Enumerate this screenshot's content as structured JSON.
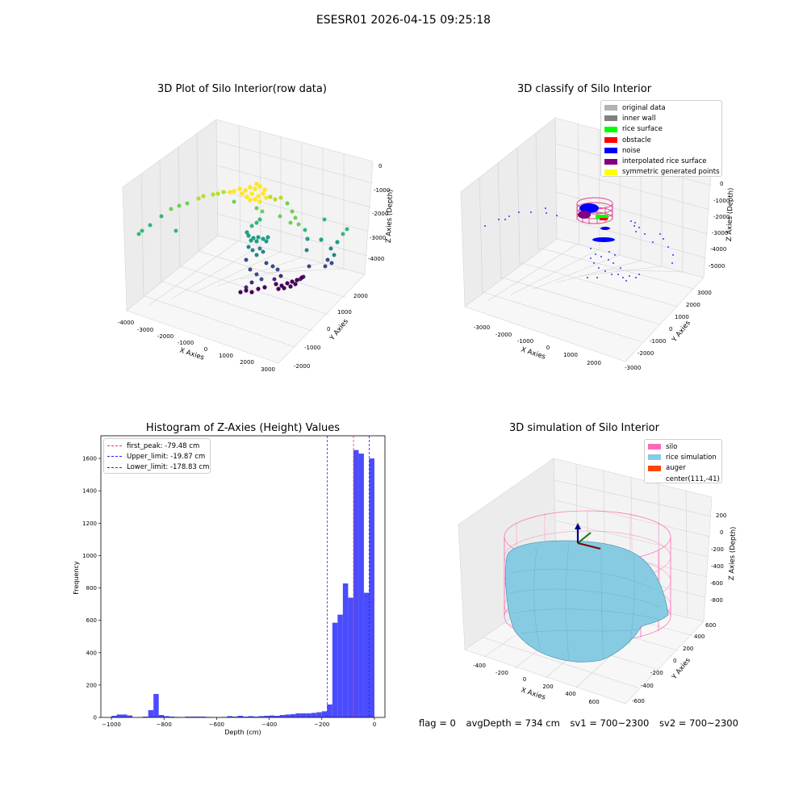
{
  "figure_title": "ESESR01 2026-04-15 09:25:18",
  "status": {
    "flag": "flag = 0",
    "avg_depth": "avgDepth = 734 cm",
    "sv1": "sv1 = 700~2300",
    "sv2": "sv2 = 700~2300"
  },
  "colors": {
    "histogram_bar": "#4b4bff",
    "first_peak_line": "#ff3333",
    "limit_lines": "#2222ff",
    "silo_wire": "#ff69b4",
    "rice_surface": "#87cbe3",
    "auger": "#ff4500"
  },
  "chart_data": [
    {
      "type": "scatter",
      "title": "3D Plot of Silo Interior(row data)",
      "xlabel": "X Axies",
      "ylabel": "Y Axies",
      "zlabel": "Z Axies (Depth)",
      "x_ticks": [
        "-4000",
        "-3000",
        "-2000",
        "-1000",
        "0",
        "1000",
        "2000",
        "3000"
      ],
      "y_ticks": [
        "-2000",
        "-1000",
        "0",
        "1000",
        "2000"
      ],
      "z_ticks": [
        "0",
        "-1000",
        "-2000",
        "-3000",
        "-4000"
      ],
      "colormap": "viridis"
    },
    {
      "type": "scatter",
      "title": "3D classify of Silo Interior",
      "xlabel": "X Axies",
      "ylabel": "Y Axies",
      "zlabel": "Z Axies (Depth)",
      "x_ticks": [
        "-3000",
        "-2000",
        "-1000",
        "0",
        "1000",
        "2000"
      ],
      "y_ticks": [
        "-3000",
        "-2000",
        "-1000",
        "0",
        "1000",
        "2000",
        "3000"
      ],
      "z_ticks": [
        "0",
        "-1000",
        "-2000",
        "-3000",
        "-4000",
        "-5000"
      ],
      "legend": [
        {
          "label": "original data",
          "color": "#b3b3b3"
        },
        {
          "label": "inner wall",
          "color": "#808080"
        },
        {
          "label": "rice surface",
          "color": "#00ff00"
        },
        {
          "label": "obstacle",
          "color": "#ff0000"
        },
        {
          "label": "noise",
          "color": "#0000ff"
        },
        {
          "label": "interpolated rice surface",
          "color": "#800080"
        },
        {
          "label": "symmetric generated points",
          "color": "#ffff00"
        }
      ]
    },
    {
      "type": "bar",
      "title": "Histogram of Z-Axies (Height) Values",
      "xlabel": "Depth (cm)",
      "ylabel": "Frequency",
      "xlim": [
        -1040,
        40
      ],
      "ylim": [
        0,
        1740
      ],
      "x_ticks": [
        -1000,
        -800,
        -600,
        -400,
        -200,
        0
      ],
      "y_ticks": [
        0,
        200,
        400,
        600,
        800,
        1000,
        1200,
        1400,
        1600
      ],
      "bin_width": 20,
      "bins": [
        {
          "x": -1000,
          "y": 10
        },
        {
          "x": -980,
          "y": 18
        },
        {
          "x": -960,
          "y": 18
        },
        {
          "x": -940,
          "y": 12
        },
        {
          "x": -900,
          "y": 2
        },
        {
          "x": -880,
          "y": 5
        },
        {
          "x": -860,
          "y": 45
        },
        {
          "x": -840,
          "y": 145
        },
        {
          "x": -820,
          "y": 15
        },
        {
          "x": -800,
          "y": 8
        },
        {
          "x": -780,
          "y": 5
        },
        {
          "x": -760,
          "y": 3
        },
        {
          "x": -740,
          "y": 2
        },
        {
          "x": -720,
          "y": 5
        },
        {
          "x": -700,
          "y": 5
        },
        {
          "x": -680,
          "y": 5
        },
        {
          "x": -660,
          "y": 5
        },
        {
          "x": -640,
          "y": 3
        },
        {
          "x": -620,
          "y": 2
        },
        {
          "x": -600,
          "y": 2
        },
        {
          "x": -580,
          "y": 3
        },
        {
          "x": -560,
          "y": 8
        },
        {
          "x": -540,
          "y": 5
        },
        {
          "x": -520,
          "y": 10
        },
        {
          "x": -500,
          "y": 5
        },
        {
          "x": -480,
          "y": 8
        },
        {
          "x": -460,
          "y": 5
        },
        {
          "x": -440,
          "y": 8
        },
        {
          "x": -420,
          "y": 10
        },
        {
          "x": -400,
          "y": 12
        },
        {
          "x": -380,
          "y": 10
        },
        {
          "x": -360,
          "y": 15
        },
        {
          "x": -340,
          "y": 18
        },
        {
          "x": -320,
          "y": 20
        },
        {
          "x": -300,
          "y": 25
        },
        {
          "x": -280,
          "y": 25
        },
        {
          "x": -260,
          "y": 25
        },
        {
          "x": -240,
          "y": 28
        },
        {
          "x": -220,
          "y": 32
        },
        {
          "x": -200,
          "y": 38
        },
        {
          "x": -180,
          "y": 80
        },
        {
          "x": -160,
          "y": 585
        },
        {
          "x": -140,
          "y": 635
        },
        {
          "x": -120,
          "y": 828
        },
        {
          "x": -100,
          "y": 740
        },
        {
          "x": -80,
          "y": 1652
        },
        {
          "x": -60,
          "y": 1630
        },
        {
          "x": -40,
          "y": 770
        },
        {
          "x": -20,
          "y": 1600
        }
      ],
      "vlines": [
        {
          "label": "first_peak: -79.48 cm",
          "x": -79.48,
          "color": "#ff3333"
        },
        {
          "label": "Upper_limit: -19.87 cm",
          "x": -19.87,
          "color": "#2222ff"
        },
        {
          "label": "Lower_limit: -178.83 cm",
          "x": -178.83,
          "color": "#2222ff"
        }
      ]
    },
    {
      "type": "surface",
      "title": "3D simulation of Silo Interior",
      "xlabel": "X Axies",
      "ylabel": "Y Axies",
      "zlabel": "Z Axies (Depth)",
      "x_ticks": [
        "-400",
        "-200",
        "0",
        "200",
        "400",
        "600"
      ],
      "y_ticks": [
        "-600",
        "-400",
        "-200",
        "0",
        "200",
        "400",
        "600"
      ],
      "z_ticks": [
        "200",
        "0",
        "-200",
        "-400",
        "-600",
        "-800"
      ],
      "legend": [
        {
          "label": "silo",
          "color": "#ff69b4"
        },
        {
          "label": "rice simulation",
          "color": "#87cbe3"
        },
        {
          "label": "auger",
          "color": "#ff4500"
        },
        {
          "label": "center(111,-41)",
          "color": "none"
        }
      ]
    }
  ]
}
